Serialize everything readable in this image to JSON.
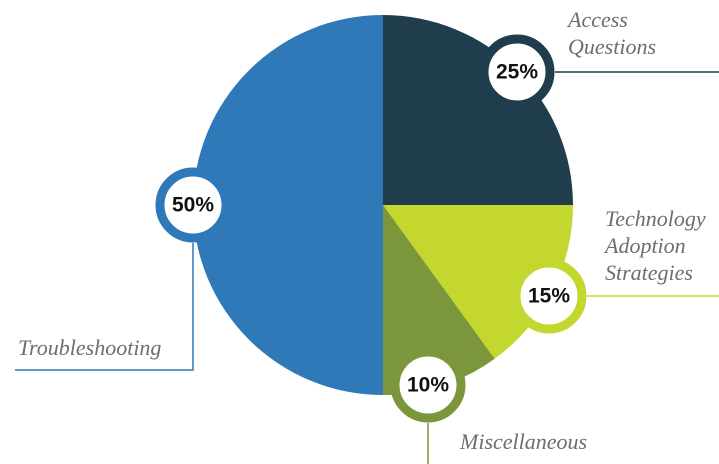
{
  "chart_data": {
    "type": "pie",
    "categories": [
      "Access Questions",
      "Technology Adoption Strategies",
      "Miscellaneous",
      "Troubleshooting"
    ],
    "values": [
      25,
      15,
      10,
      50
    ],
    "value_labels": [
      "25%",
      "15%",
      "10%",
      "50%"
    ],
    "colors": [
      "#1f3d4d",
      "#c4d72f",
      "#7b963b",
      "#2f79b9"
    ]
  }
}
